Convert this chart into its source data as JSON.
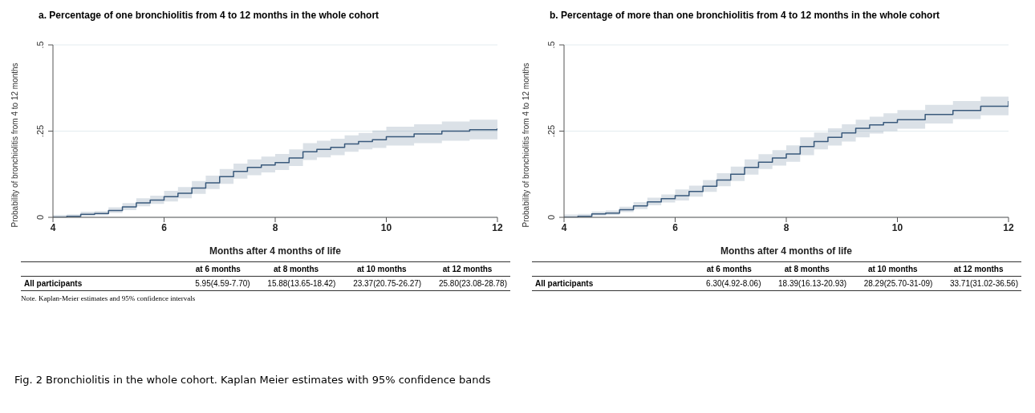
{
  "chart_data": [
    {
      "type": "step",
      "title": "a. Percentage of one bronchiolitis from 4 to 12 months in the whole cohort",
      "xlabel": "Months after 4 months of life",
      "ylabel": "Probability of bronchiolitis from 4 to 12 months",
      "x": [
        4,
        4.25,
        4.5,
        4.75,
        5,
        5.25,
        5.5,
        5.75,
        6,
        6.25,
        6.5,
        6.75,
        7,
        7.25,
        7.5,
        7.75,
        8,
        8.25,
        8.5,
        8.75,
        9,
        9.25,
        9.5,
        9.75,
        10,
        10.5,
        11,
        11.5,
        12
      ],
      "series": [
        {
          "color": "#3a5a7c",
          "values": [
            0,
            0.003,
            0.009,
            0.011,
            0.02,
            0.03,
            0.042,
            0.05,
            0.06,
            0.07,
            0.085,
            0.1,
            0.118,
            0.133,
            0.145,
            0.152,
            0.159,
            0.172,
            0.19,
            0.197,
            0.203,
            0.213,
            0.22,
            0.225,
            0.234,
            0.242,
            0.25,
            0.254,
            0.258
          ],
          "lower": [
            0,
            0,
            0.004,
            0.006,
            0.013,
            0.021,
            0.032,
            0.039,
            0.046,
            0.055,
            0.068,
            0.082,
            0.097,
            0.112,
            0.122,
            0.13,
            0.137,
            0.149,
            0.166,
            0.174,
            0.18,
            0.19,
            0.197,
            0.201,
            0.208,
            0.215,
            0.222,
            0.226,
            0.231
          ],
          "upper": [
            0.007,
            0.009,
            0.016,
            0.018,
            0.029,
            0.041,
            0.055,
            0.063,
            0.077,
            0.088,
            0.105,
            0.121,
            0.14,
            0.156,
            0.168,
            0.176,
            0.184,
            0.197,
            0.215,
            0.222,
            0.228,
            0.238,
            0.245,
            0.252,
            0.263,
            0.27,
            0.278,
            0.283,
            0.288
          ]
        }
      ],
      "xlim": [
        4,
        12
      ],
      "xticks": [
        4,
        6,
        8,
        10,
        12
      ],
      "ylim": [
        0,
        0.5
      ],
      "yticks": [
        {
          "value": 0,
          "label": "0"
        },
        {
          "value": 0.25,
          "label": ".25"
        },
        {
          "value": 0.5,
          "label": ".5"
        }
      ],
      "grid": "y",
      "legend": false,
      "annotations": [
        "at 6 months",
        "at 8 months",
        "at 10 months",
        "at 12 months",
        "All participants",
        "5.95(4.59-7.70)",
        "15.88(13.65-18.42)",
        "23.37(20.75-26.27)",
        "25.80(23.08-28.78)",
        "Note. Kaplan-Meier estimates and 95% confidence intervals",
        "Fig. 2 Bronchiolitis in the whole cohort. Kaplan Meier estimates with 95% confidence bands"
      ]
    },
    {
      "type": "step",
      "title": "b. Percentage of more than one bronchiolitis from 4 to 12 months in the whole cohort",
      "xlabel": "Months after 4 months of life",
      "ylabel": "Probability of bronchiolitis from 4 to 12 months",
      "x": [
        4,
        4.25,
        4.5,
        4.75,
        5,
        5.25,
        5.5,
        5.75,
        6,
        6.25,
        6.5,
        6.75,
        7,
        7.25,
        7.5,
        7.75,
        8,
        8.25,
        8.5,
        8.75,
        9,
        9.25,
        9.5,
        9.75,
        10,
        10.5,
        11,
        11.5,
        12
      ],
      "series": [
        {
          "color": "#3a5a7c",
          "values": [
            0,
            0.003,
            0.01,
            0.012,
            0.022,
            0.033,
            0.045,
            0.054,
            0.063,
            0.075,
            0.09,
            0.108,
            0.125,
            0.145,
            0.16,
            0.172,
            0.184,
            0.205,
            0.22,
            0.232,
            0.245,
            0.258,
            0.268,
            0.275,
            0.283,
            0.298,
            0.31,
            0.322,
            0.337
          ],
          "lower": [
            0,
            0,
            0.005,
            0.007,
            0.015,
            0.024,
            0.035,
            0.043,
            0.049,
            0.06,
            0.074,
            0.09,
            0.105,
            0.124,
            0.14,
            0.15,
            0.161,
            0.18,
            0.197,
            0.208,
            0.22,
            0.232,
            0.243,
            0.25,
            0.257,
            0.272,
            0.285,
            0.296,
            0.31
          ],
          "upper": [
            0.008,
            0.01,
            0.017,
            0.02,
            0.031,
            0.044,
            0.057,
            0.066,
            0.081,
            0.092,
            0.108,
            0.128,
            0.147,
            0.168,
            0.183,
            0.195,
            0.209,
            0.232,
            0.246,
            0.258,
            0.27,
            0.283,
            0.292,
            0.302,
            0.311,
            0.326,
            0.337,
            0.35,
            0.366
          ]
        }
      ],
      "xlim": [
        4,
        12
      ],
      "xticks": [
        4,
        6,
        8,
        10,
        12
      ],
      "ylim": [
        0,
        0.5
      ],
      "yticks": [
        {
          "value": 0,
          "label": "0"
        },
        {
          "value": 0.25,
          "label": ".25"
        },
        {
          "value": 0.5,
          "label": ".5"
        }
      ],
      "grid": "y",
      "legend": false,
      "annotations": [
        "at 6 months",
        "at 8 months",
        "at 10 months",
        "at 12 months",
        "All participants",
        "6.30(4.92-8.06)",
        "18.39(16.13-20.93)",
        "28.29(25.70-31-09)",
        "33.71(31.02-36.56)"
      ]
    }
  ]
}
